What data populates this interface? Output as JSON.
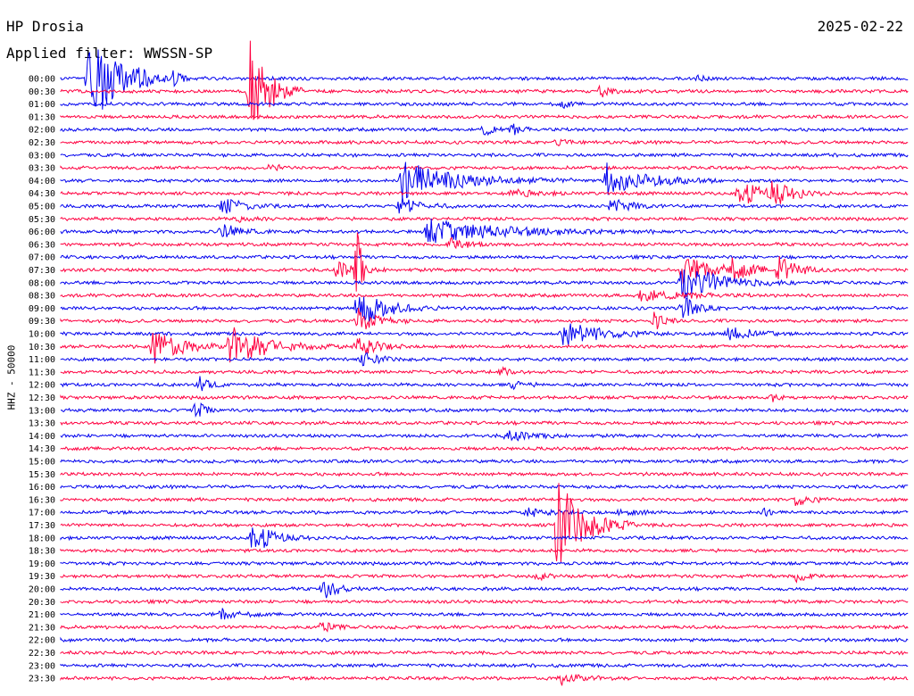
{
  "header": {
    "station": "HP Drosia",
    "filter": "Applied filter: WWSSN-SP",
    "date": "2025-02-22",
    "channel_label": "HHZ - 50000"
  },
  "colors": {
    "blue": "#0000ee",
    "red": "#ff0040"
  },
  "chart_data": {
    "type": "line",
    "title": "HP Drosia",
    "subtitle": "Applied filter: WWSSN-SP",
    "ylabel": "HHZ - 50000",
    "row_labels": [
      "00:00",
      "00:30",
      "01:00",
      "01:30",
      "02:00",
      "02:30",
      "03:00",
      "03:30",
      "04:00",
      "04:30",
      "05:00",
      "05:30",
      "06:00",
      "06:30",
      "07:00",
      "07:30",
      "08:00",
      "08:30",
      "09:00",
      "09:30",
      "10:00",
      "10:30",
      "11:00",
      "11:30",
      "12:00",
      "12:30",
      "13:00",
      "13:30",
      "14:00",
      "14:30",
      "15:00",
      "15:30",
      "16:00",
      "16:30",
      "17:00",
      "17:30",
      "18:00",
      "18:30",
      "19:00",
      "19:30",
      "20:00",
      "20:30",
      "21:00",
      "21:30",
      "22:00",
      "22:30",
      "23:00",
      "23:30"
    ],
    "x_range_minutes": [
      0,
      30
    ],
    "row_colors": [
      "blue",
      "red"
    ],
    "events": [
      {
        "row": "00:00",
        "minute": 1.0,
        "amplitude": 8.0,
        "duration": 1.5
      },
      {
        "row": "00:00",
        "minute": 2.8,
        "amplitude": 0.8,
        "duration": 0.5
      },
      {
        "row": "00:00",
        "minute": 4.0,
        "amplitude": 1.0,
        "duration": 0.6
      },
      {
        "row": "00:00",
        "minute": 22.5,
        "amplitude": 0.6,
        "duration": 0.4
      },
      {
        "row": "00:30",
        "minute": 6.7,
        "amplitude": 8.0,
        "duration": 1.0
      },
      {
        "row": "00:30",
        "minute": 19.1,
        "amplitude": 1.0,
        "duration": 0.5
      },
      {
        "row": "01:00",
        "minute": 17.8,
        "amplitude": 0.6,
        "duration": 0.3
      },
      {
        "row": "02:00",
        "minute": 15.0,
        "amplitude": 1.2,
        "duration": 0.4
      },
      {
        "row": "02:00",
        "minute": 16.0,
        "amplitude": 1.0,
        "duration": 0.4
      },
      {
        "row": "02:30",
        "minute": 17.5,
        "amplitude": 0.5,
        "duration": 0.6
      },
      {
        "row": "03:30",
        "minute": 7.4,
        "amplitude": 0.6,
        "duration": 0.6
      },
      {
        "row": "04:00",
        "minute": 12.1,
        "amplitude": 3.0,
        "duration": 3.0
      },
      {
        "row": "04:00",
        "minute": 19.3,
        "amplitude": 3.0,
        "duration": 2.0
      },
      {
        "row": "04:30",
        "minute": 16.0,
        "amplitude": 0.5,
        "duration": 1.5
      },
      {
        "row": "04:30",
        "minute": 24.0,
        "amplitude": 2.5,
        "duration": 1.2
      },
      {
        "row": "04:30",
        "minute": 25.2,
        "amplitude": 2.0,
        "duration": 1.0
      },
      {
        "row": "05:00",
        "minute": 5.7,
        "amplitude": 1.5,
        "duration": 1.0
      },
      {
        "row": "05:00",
        "minute": 12.0,
        "amplitude": 1.5,
        "duration": 1.0
      },
      {
        "row": "05:00",
        "minute": 19.5,
        "amplitude": 1.2,
        "duration": 1.0
      },
      {
        "row": "05:30",
        "minute": 6.2,
        "amplitude": 0.4,
        "duration": 1.0
      },
      {
        "row": "06:00",
        "minute": 5.7,
        "amplitude": 1.2,
        "duration": 1.0
      },
      {
        "row": "06:00",
        "minute": 13.0,
        "amplitude": 2.0,
        "duration": 4.0
      },
      {
        "row": "06:30",
        "minute": 13.8,
        "amplitude": 1.0,
        "duration": 1.0
      },
      {
        "row": "07:30",
        "minute": 9.8,
        "amplitude": 1.5,
        "duration": 1.0
      },
      {
        "row": "07:30",
        "minute": 10.5,
        "amplitude": 8.0,
        "duration": 0.2
      },
      {
        "row": "07:30",
        "minute": 22.0,
        "amplitude": 2.0,
        "duration": 2.0
      },
      {
        "row": "07:30",
        "minute": 23.6,
        "amplitude": 2.0,
        "duration": 0.8
      },
      {
        "row": "07:30",
        "minute": 25.4,
        "amplitude": 2.0,
        "duration": 1.0
      },
      {
        "row": "08:00",
        "minute": 22.0,
        "amplitude": 3.0,
        "duration": 2.0
      },
      {
        "row": "08:30",
        "minute": 20.5,
        "amplitude": 1.0,
        "duration": 2.0
      },
      {
        "row": "09:00",
        "minute": 10.5,
        "amplitude": 3.0,
        "duration": 1.5
      },
      {
        "row": "09:00",
        "minute": 22.0,
        "amplitude": 2.0,
        "duration": 0.8
      },
      {
        "row": "09:30",
        "minute": 10.5,
        "amplitude": 2.0,
        "duration": 1.0
      },
      {
        "row": "09:30",
        "minute": 21.0,
        "amplitude": 1.5,
        "duration": 0.5
      },
      {
        "row": "10:00",
        "minute": 17.8,
        "amplitude": 2.0,
        "duration": 2.0
      },
      {
        "row": "10:00",
        "minute": 23.6,
        "amplitude": 1.5,
        "duration": 1.0
      },
      {
        "row": "10:30",
        "minute": 3.2,
        "amplitude": 3.0,
        "duration": 1.5
      },
      {
        "row": "10:30",
        "minute": 6.0,
        "amplitude": 3.0,
        "duration": 2.0
      },
      {
        "row": "10:30",
        "minute": 10.5,
        "amplitude": 2.0,
        "duration": 1.0
      },
      {
        "row": "11:00",
        "minute": 10.7,
        "amplitude": 1.0,
        "duration": 1.0
      },
      {
        "row": "11:30",
        "minute": 15.6,
        "amplitude": 0.6,
        "duration": 0.5
      },
      {
        "row": "12:00",
        "minute": 4.9,
        "amplitude": 1.5,
        "duration": 0.5
      },
      {
        "row": "12:00",
        "minute": 16.0,
        "amplitude": 0.6,
        "duration": 0.6
      },
      {
        "row": "12:30",
        "minute": 25.2,
        "amplitude": 0.6,
        "duration": 0.4
      },
      {
        "row": "13:00",
        "minute": 4.8,
        "amplitude": 1.5,
        "duration": 0.5
      },
      {
        "row": "14:00",
        "minute": 15.8,
        "amplitude": 1.0,
        "duration": 1.2
      },
      {
        "row": "16:30",
        "minute": 26.0,
        "amplitude": 1.0,
        "duration": 0.8
      },
      {
        "row": "17:00",
        "minute": 16.5,
        "amplitude": 0.6,
        "duration": 1.5
      },
      {
        "row": "17:00",
        "minute": 19.8,
        "amplitude": 0.5,
        "duration": 1.0
      },
      {
        "row": "17:00",
        "minute": 24.9,
        "amplitude": 0.6,
        "duration": 0.3
      },
      {
        "row": "17:30",
        "minute": 17.5,
        "amplitude": 8.0,
        "duration": 1.5
      },
      {
        "row": "18:00",
        "minute": 6.8,
        "amplitude": 3.0,
        "duration": 1.0
      },
      {
        "row": "19:30",
        "minute": 16.9,
        "amplitude": 0.8,
        "duration": 0.4
      },
      {
        "row": "19:30",
        "minute": 26.0,
        "amplitude": 1.0,
        "duration": 0.6
      },
      {
        "row": "20:00",
        "minute": 9.3,
        "amplitude": 1.5,
        "duration": 0.8
      },
      {
        "row": "21:00",
        "minute": 5.7,
        "amplitude": 1.0,
        "duration": 0.8
      },
      {
        "row": "21:30",
        "minute": 9.2,
        "amplitude": 1.0,
        "duration": 0.6
      },
      {
        "row": "23:30",
        "minute": 17.7,
        "amplitude": 1.0,
        "duration": 1.0
      }
    ]
  }
}
